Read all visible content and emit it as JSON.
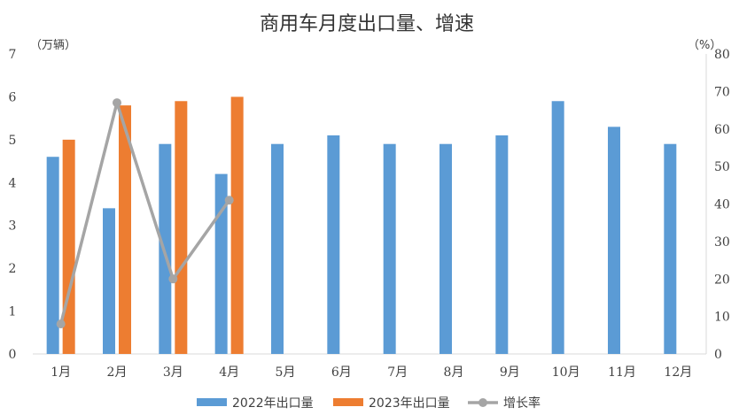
{
  "chart_data": {
    "type": "bar",
    "title": "商用车月度出口量、增速",
    "categories": [
      "1月",
      "2月",
      "3月",
      "4月",
      "5月",
      "6月",
      "7月",
      "8月",
      "9月",
      "10月",
      "11月",
      "12月"
    ],
    "y_left": {
      "unit_label": "（万辆）",
      "ylim": [
        0,
        7
      ],
      "ticks": [
        "0",
        "1",
        "2",
        "3",
        "4",
        "5",
        "6",
        "7"
      ]
    },
    "y_right": {
      "unit_label": "（%）",
      "ylim": [
        0,
        80
      ],
      "ticks": [
        "0",
        "10",
        "20",
        "30",
        "40",
        "50",
        "60",
        "70",
        "80"
      ]
    },
    "series": [
      {
        "name": "2022年出口量",
        "type": "bar",
        "axis": "left",
        "color": "#5B9BD5",
        "values": [
          4.6,
          3.4,
          4.9,
          4.2,
          4.9,
          5.1,
          4.9,
          4.9,
          5.1,
          5.9,
          5.3,
          4.9
        ]
      },
      {
        "name": "2023年出口量",
        "type": "bar",
        "axis": "left",
        "color": "#ED7D31",
        "values": [
          5.0,
          5.8,
          5.9,
          6.0,
          null,
          null,
          null,
          null,
          null,
          null,
          null,
          null
        ]
      },
      {
        "name": "增长率",
        "type": "line",
        "axis": "right",
        "color": "#A5A5A5",
        "values": [
          8,
          67,
          20,
          41,
          null,
          null,
          null,
          null,
          null,
          null,
          null,
          null
        ]
      }
    ],
    "grid": false,
    "legend_position": "bottom"
  }
}
